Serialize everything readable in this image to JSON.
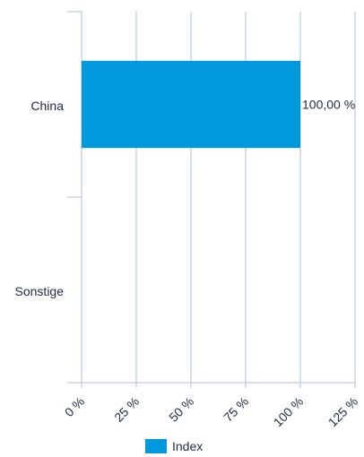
{
  "chart_data": {
    "type": "bar",
    "orientation": "horizontal",
    "categories": [
      "China",
      "Sonstige"
    ],
    "series": [
      {
        "name": "Index",
        "values": [
          100.0,
          null
        ],
        "color": "#0099dd"
      }
    ],
    "data_labels": [
      "100,00 %",
      ""
    ],
    "x_ticks": [
      "0 %",
      "25 %",
      "50 %",
      "75 %",
      "100 %",
      "125 %"
    ],
    "xlim": [
      0,
      125
    ],
    "grid": true,
    "legend": {
      "position": "bottom",
      "label": "Index"
    }
  }
}
